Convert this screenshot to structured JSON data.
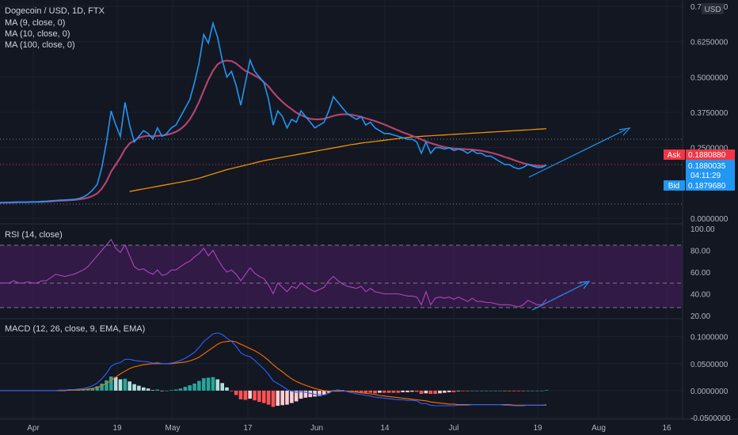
{
  "legend": {
    "title": "Dogecoin / USD, 1D, FTX",
    "ma9": "MA (9, close, 0)",
    "ma10": "MA (10, close, 0)",
    "ma100": "MA (100, close, 0)",
    "rsi": "RSI (14, close)",
    "macd": "MACD (12, 26, close, 9, EMA, EMA)"
  },
  "price_tags": {
    "currency": "USD",
    "ask_label": "Ask",
    "ask_value": "0.1880880",
    "last_value": "0.1880035",
    "countdown": "04:11:29",
    "bid_label": "Bid",
    "bid_value": "0.1879680"
  },
  "colors": {
    "background": "#131722",
    "price_line": "#2196f3",
    "ma_short": "#e53935",
    "ma_long": "#ff9800",
    "rsi_line": "#ab47bc",
    "rsi_band": "#4a1e63",
    "macd_line": "#2962ff",
    "signal_line": "#ff6d00",
    "hist_pos_strong": "#26a69a",
    "hist_pos_weak": "#b2dfdb",
    "hist_neg_strong": "#ff5252",
    "hist_neg_weak": "#ffcdd2",
    "ask_tag": "#f23645",
    "bid_tag": "#2196f3",
    "trend_arrow": "#2196f3"
  },
  "chart_data": [
    {
      "type": "line",
      "name": "price",
      "x_ticks": [
        "Apr",
        "19",
        "May",
        "17",
        "Jun",
        "14",
        "Jul",
        "19",
        "Aug",
        "16"
      ],
      "y_ticks": [
        "0.7500000",
        "0.6250000",
        "0.5000000",
        "0.3750000",
        "0.2500000",
        "0.0000000"
      ],
      "ylim": [
        0,
        0.75
      ],
      "close": [
        0.055,
        0.056,
        0.056,
        0.057,
        0.057,
        0.057,
        0.058,
        0.058,
        0.058,
        0.06,
        0.06,
        0.062,
        0.063,
        0.064,
        0.065,
        0.066,
        0.067,
        0.07,
        0.075,
        0.085,
        0.1,
        0.12,
        0.18,
        0.27,
        0.38,
        0.33,
        0.29,
        0.41,
        0.33,
        0.27,
        0.29,
        0.31,
        0.3,
        0.28,
        0.32,
        0.29,
        0.3,
        0.32,
        0.33,
        0.36,
        0.39,
        0.42,
        0.48,
        0.55,
        0.65,
        0.62,
        0.69,
        0.64,
        0.56,
        0.5,
        0.52,
        0.47,
        0.4,
        0.48,
        0.56,
        0.52,
        0.5,
        0.48,
        0.42,
        0.33,
        0.38,
        0.36,
        0.32,
        0.35,
        0.34,
        0.38,
        0.36,
        0.34,
        0.32,
        0.33,
        0.34,
        0.38,
        0.43,
        0.41,
        0.39,
        0.37,
        0.36,
        0.35,
        0.36,
        0.33,
        0.34,
        0.32,
        0.31,
        0.3,
        0.3,
        0.295,
        0.29,
        0.285,
        0.28,
        0.28,
        0.27,
        0.23,
        0.27,
        0.23,
        0.25,
        0.25,
        0.245,
        0.25,
        0.24,
        0.245,
        0.24,
        0.23,
        0.24,
        0.23,
        0.23,
        0.22,
        0.22,
        0.21,
        0.2,
        0.19,
        0.19,
        0.18,
        0.175,
        0.18,
        0.19,
        0.185,
        0.18,
        0.18,
        0.188
      ],
      "ma_short": [
        0.055,
        0.055,
        0.056,
        0.056,
        0.057,
        0.057,
        0.057,
        0.058,
        0.058,
        0.058,
        0.059,
        0.06,
        0.061,
        0.062,
        0.063,
        0.064,
        0.065,
        0.067,
        0.069,
        0.073,
        0.079,
        0.088,
        0.105,
        0.13,
        0.165,
        0.19,
        0.215,
        0.245,
        0.265,
        0.275,
        0.285,
        0.29,
        0.292,
        0.29,
        0.292,
        0.293,
        0.295,
        0.3,
        0.306,
        0.316,
        0.33,
        0.35,
        0.378,
        0.412,
        0.452,
        0.49,
        0.522,
        0.545,
        0.555,
        0.558,
        0.556,
        0.548,
        0.534,
        0.522,
        0.514,
        0.505,
        0.496,
        0.482,
        0.466,
        0.446,
        0.428,
        0.412,
        0.398,
        0.386,
        0.374,
        0.365,
        0.358,
        0.352,
        0.35,
        0.35,
        0.352,
        0.357,
        0.362,
        0.366,
        0.368,
        0.368,
        0.366,
        0.363,
        0.359,
        0.354,
        0.349,
        0.344,
        0.338,
        0.332,
        0.325,
        0.318,
        0.311,
        0.304,
        0.298,
        0.292,
        0.286,
        0.279,
        0.272,
        0.266,
        0.261,
        0.256,
        0.252,
        0.249,
        0.247,
        0.246,
        0.245,
        0.244,
        0.243,
        0.241,
        0.239,
        0.236,
        0.232,
        0.228,
        0.223,
        0.217,
        0.212,
        0.206,
        0.2,
        0.195,
        0.191,
        0.188,
        0.186,
        0.185,
        0.188
      ],
      "ma_long": [
        null,
        null,
        null,
        null,
        null,
        null,
        null,
        null,
        null,
        null,
        null,
        null,
        null,
        null,
        null,
        null,
        null,
        null,
        null,
        null,
        null,
        null,
        null,
        null,
        null,
        null,
        null,
        null,
        0.095,
        0.098,
        0.101,
        0.104,
        0.107,
        0.11,
        0.113,
        0.116,
        0.119,
        0.122,
        0.125,
        0.128,
        0.131,
        0.134,
        0.138,
        0.142,
        0.147,
        0.152,
        0.157,
        0.162,
        0.167,
        0.172,
        0.176,
        0.18,
        0.184,
        0.188,
        0.192,
        0.196,
        0.2,
        0.204,
        0.207,
        0.21,
        0.213,
        0.216,
        0.219,
        0.222,
        0.225,
        0.228,
        0.231,
        0.234,
        0.237,
        0.24,
        0.243,
        0.246,
        0.249,
        0.252,
        0.255,
        0.258,
        0.261,
        0.263,
        0.266,
        0.268,
        0.27,
        0.272,
        0.274,
        0.276,
        0.278,
        0.28,
        0.282,
        0.284,
        0.286,
        0.288,
        0.289,
        0.29,
        0.291,
        0.292,
        0.293,
        0.294,
        0.295,
        0.296,
        0.297,
        0.298,
        0.299,
        0.3,
        0.301,
        0.302,
        0.303,
        0.304,
        0.305,
        0.306,
        0.307,
        0.308,
        0.309,
        0.31,
        0.311,
        0.312,
        0.313,
        0.314,
        0.315,
        0.316,
        0.317
      ]
    },
    {
      "type": "line",
      "name": "RSI (14, close)",
      "y_ticks": [
        "100.00",
        "80.00",
        "60.00",
        "40.00",
        "20.00"
      ],
      "ylim": [
        20,
        100
      ],
      "bands": [
        30,
        50,
        70
      ],
      "values": [
        50,
        50,
        50,
        52,
        50,
        50,
        51,
        50,
        50,
        52,
        52,
        55,
        58,
        57,
        56,
        57,
        58,
        60,
        62,
        65,
        70,
        75,
        80,
        85,
        90,
        82,
        78,
        85,
        75,
        65,
        62,
        63,
        60,
        58,
        62,
        57,
        58,
        62,
        62,
        65,
        68,
        70,
        74,
        77,
        82,
        75,
        80,
        72,
        65,
        60,
        62,
        58,
        52,
        58,
        64,
        59,
        56,
        54,
        48,
        40,
        50,
        46,
        42,
        47,
        45,
        50,
        47,
        44,
        42,
        44,
        46,
        52,
        56,
        52,
        49,
        47,
        46,
        45,
        47,
        42,
        45,
        42,
        41,
        40,
        40,
        40,
        40,
        39,
        38,
        38,
        37,
        30,
        42,
        30,
        36,
        37,
        36,
        37,
        35,
        37,
        35,
        33,
        36,
        33,
        33,
        32,
        32,
        31,
        30,
        30,
        30,
        29,
        28,
        30,
        34,
        32,
        30,
        30,
        35
      ]
    },
    {
      "type": "bar",
      "name": "MACD (12, 26, close, 9, EMA, EMA)",
      "y_ticks": [
        "0.1000000",
        "0.0500000",
        "0.0000000",
        "-0.0500000"
      ],
      "ylim": [
        -0.05,
        0.12
      ],
      "macd": [
        0,
        0,
        0,
        0,
        0,
        0,
        0,
        0,
        0,
        0,
        0,
        0,
        0,
        0.001,
        0.001,
        0.002,
        0.002,
        0.003,
        0.004,
        0.006,
        0.009,
        0.014,
        0.022,
        0.032,
        0.045,
        0.05,
        0.052,
        0.058,
        0.058,
        0.056,
        0.055,
        0.054,
        0.053,
        0.051,
        0.052,
        0.05,
        0.05,
        0.051,
        0.053,
        0.056,
        0.06,
        0.065,
        0.071,
        0.08,
        0.091,
        0.098,
        0.105,
        0.107,
        0.104,
        0.097,
        0.091,
        0.082,
        0.07,
        0.065,
        0.063,
        0.056,
        0.048,
        0.04,
        0.03,
        0.018,
        0.013,
        0.008,
        0.002,
        -0.001,
        -0.003,
        -0.002,
        -0.003,
        -0.005,
        -0.007,
        -0.008,
        -0.008,
        -0.005,
        0.0,
        0.001,
        0.0,
        -0.002,
        -0.004,
        -0.006,
        -0.007,
        -0.009,
        -0.01,
        -0.012,
        -0.013,
        -0.014,
        -0.015,
        -0.016,
        -0.017,
        -0.017,
        -0.018,
        -0.018,
        -0.019,
        -0.024,
        -0.024,
        -0.027,
        -0.028,
        -0.028,
        -0.028,
        -0.028,
        -0.028,
        -0.027,
        -0.027,
        -0.027,
        -0.026,
        -0.026,
        -0.026,
        -0.026,
        -0.026,
        -0.026,
        -0.026,
        -0.027,
        -0.027,
        -0.028,
        -0.028,
        -0.028,
        -0.027,
        -0.027,
        -0.027,
        -0.027,
        -0.026
      ],
      "signal": [
        0,
        0,
        0,
        0,
        0,
        0,
        0,
        0,
        0,
        0,
        0,
        0,
        0,
        0,
        0,
        0.001,
        0.001,
        0.001,
        0.002,
        0.003,
        0.004,
        0.006,
        0.009,
        0.013,
        0.019,
        0.025,
        0.031,
        0.036,
        0.041,
        0.044,
        0.046,
        0.048,
        0.049,
        0.05,
        0.05,
        0.05,
        0.05,
        0.05,
        0.051,
        0.052,
        0.053,
        0.055,
        0.058,
        0.062,
        0.068,
        0.074,
        0.08,
        0.086,
        0.09,
        0.091,
        0.092,
        0.09,
        0.086,
        0.082,
        0.078,
        0.074,
        0.069,
        0.063,
        0.056,
        0.048,
        0.041,
        0.035,
        0.028,
        0.022,
        0.017,
        0.013,
        0.01,
        0.007,
        0.004,
        0.002,
        0.0,
        -0.001,
        -0.001,
        -0.001,
        -0.001,
        -0.001,
        -0.002,
        -0.003,
        -0.004,
        -0.005,
        -0.006,
        -0.007,
        -0.009,
        -0.01,
        -0.011,
        -0.012,
        -0.013,
        -0.014,
        -0.015,
        -0.016,
        -0.017,
        -0.018,
        -0.019,
        -0.021,
        -0.022,
        -0.023,
        -0.024,
        -0.025,
        -0.025,
        -0.026,
        -0.026,
        -0.026,
        -0.026,
        -0.026,
        -0.026,
        -0.026,
        -0.026,
        -0.026,
        -0.026,
        -0.026,
        -0.026,
        -0.027,
        -0.027,
        -0.027,
        -0.027,
        -0.027,
        -0.027,
        -0.027,
        -0.027
      ]
    }
  ]
}
